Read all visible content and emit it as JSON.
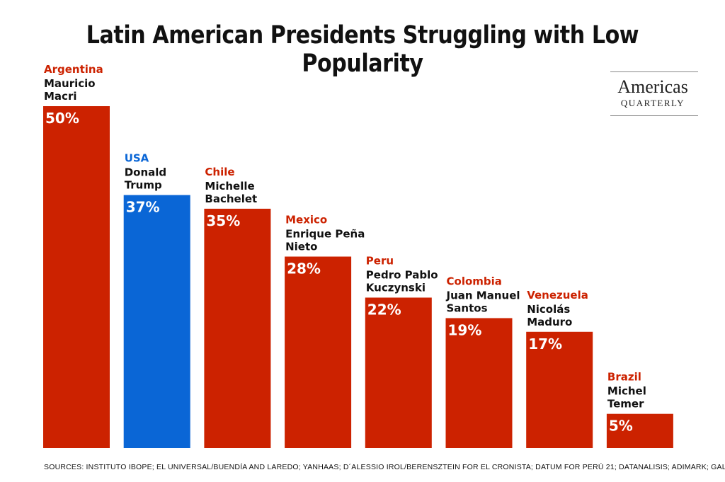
{
  "title": "Latin American Presidents Struggling with Low Popularity",
  "logo": {
    "line1": "Americas",
    "line2": "QUARTERLY"
  },
  "sources": "SOURCES: INSTITUTO IBOPE; EL UNIVERSAL/BUENDÍA AND LAREDO; YANHAAS; D´ALESSIO IROL/BERENSZTEIN FOR EL CRONISTA; DATUM FOR PERÚ 21; DATANALISIS; ADIMARK; GALLUP.",
  "colors": {
    "latin": "#cc2200",
    "usa": "#0a66d6",
    "text": "#111111"
  },
  "chart_data": {
    "type": "bar",
    "categories": [
      "Argentina",
      "USA",
      "Chile",
      "Mexico",
      "Peru",
      "Colombia",
      "Venezuela",
      "Brazil"
    ],
    "presidents": [
      [
        "Mauricio",
        "Macri"
      ],
      [
        "Donald",
        "Trump"
      ],
      [
        "Michelle",
        "Bachelet"
      ],
      [
        "Enrique Peña",
        "Nieto"
      ],
      [
        "Pedro Pablo",
        "Kuczynski"
      ],
      [
        "Juan Manuel",
        "Santos"
      ],
      [
        "Nicolás",
        "Maduro"
      ],
      [
        "Michel",
        "Temer"
      ]
    ],
    "values": [
      50,
      37,
      35,
      28,
      22,
      19,
      17,
      5
    ],
    "value_labels": [
      "50%",
      "37%",
      "35%",
      "28%",
      "22%",
      "19%",
      "17%",
      "5%"
    ],
    "bar_colors": [
      "#cc2200",
      "#0a66d6",
      "#cc2200",
      "#cc2200",
      "#cc2200",
      "#cc2200",
      "#cc2200",
      "#cc2200"
    ],
    "ylim": [
      0,
      50
    ],
    "grid": false,
    "legend": "none"
  }
}
